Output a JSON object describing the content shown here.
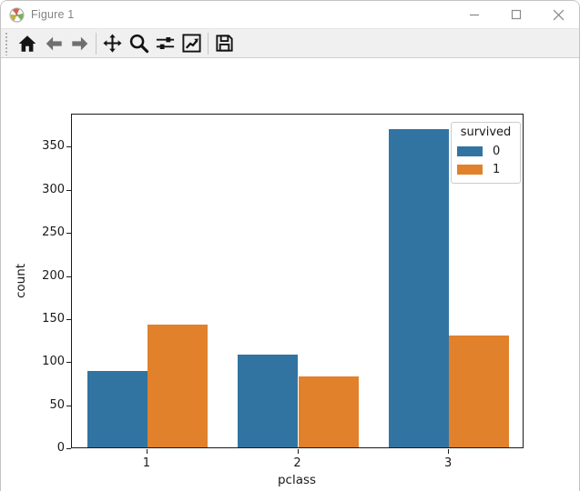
{
  "window": {
    "title": "Figure 1",
    "controls": [
      "minimize",
      "maximize",
      "close"
    ]
  },
  "toolbar": {
    "buttons": [
      "home",
      "back",
      "forward",
      "pan",
      "zoom",
      "configure-subplots",
      "edit-axes",
      "save"
    ]
  },
  "chart_data": {
    "type": "bar",
    "title": "",
    "xlabel": "pclass",
    "ylabel": "count",
    "categories": [
      "1",
      "2",
      "3"
    ],
    "series": [
      {
        "name": "0",
        "color": "#3274a1",
        "values": [
          89,
          108,
          370
        ]
      },
      {
        "name": "1",
        "color": "#e1812c",
        "values": [
          143,
          82,
          130
        ]
      }
    ],
    "legend_title": "survived",
    "legend_position": "upper right",
    "ylim": [
      0,
      388.5
    ],
    "yticks": [
      0,
      50,
      100,
      150,
      200,
      250,
      300,
      350
    ],
    "grid": false,
    "axis_color": "#1a1a1a",
    "background": "#ffffff"
  }
}
